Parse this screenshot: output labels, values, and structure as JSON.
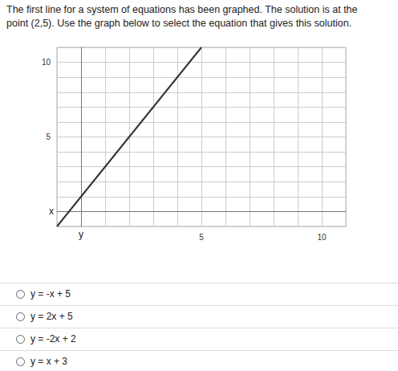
{
  "question_lines": [
    "The first line for a system of equations has been graphed. The solution is at the",
    "point (2,5). Use the graph below to select the equation that gives this solution."
  ],
  "chart_data": {
    "type": "line",
    "x": [
      -1,
      5
    ],
    "values": [
      -1,
      11
    ],
    "color": "#333333",
    "xlim": [
      -1,
      11
    ],
    "ylim": [
      -1,
      11
    ],
    "xticks": [
      5,
      10
    ],
    "yticks": [
      5,
      10
    ],
    "x_label": "x",
    "y_label": "y",
    "grid": true
  },
  "options": [
    "y = -x + 5",
    "y = 2x + 5",
    "y = -2x + 2",
    "y = x + 3"
  ]
}
